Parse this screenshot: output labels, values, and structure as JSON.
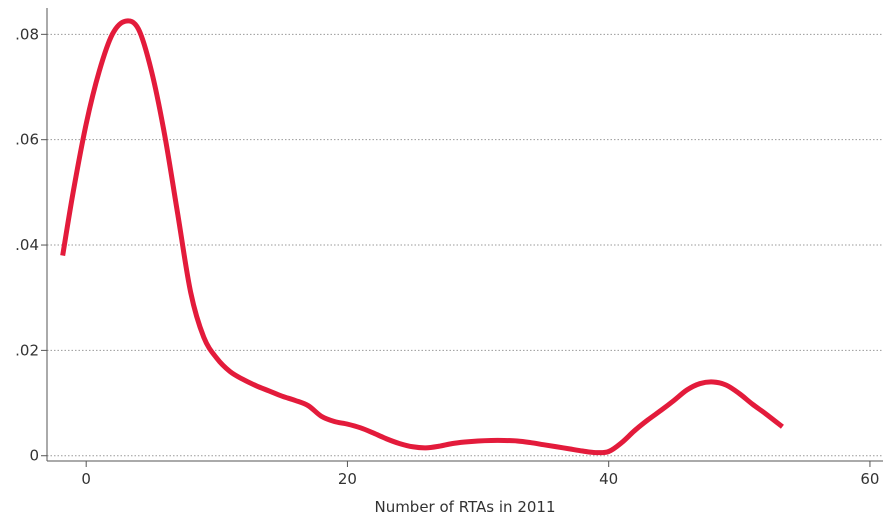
{
  "chart_data": {
    "type": "line",
    "title": "",
    "xlabel": "Number of RTAs in 2011",
    "ylabel": "",
    "xlim": [
      -3,
      61
    ],
    "ylim": [
      -0.001,
      0.085
    ],
    "x_ticks": [
      0,
      20,
      40,
      60
    ],
    "x_tick_labels": [
      "0",
      "20",
      "40",
      "60"
    ],
    "y_ticks": [
      0,
      0.02,
      0.04,
      0.06,
      0.08
    ],
    "y_tick_labels": [
      "0",
      ".02",
      ".04",
      ".06",
      ".08"
    ],
    "grid": "horizontal dotted",
    "legend": "none",
    "colors": {
      "line": "#e31b3b",
      "grid": "#9a9a9a",
      "axis": "#555555",
      "text": "#333333"
    },
    "series": [
      {
        "x": [
          -1.8,
          -1,
          0,
          1,
          2,
          3,
          4,
          5,
          6,
          7,
          8,
          9,
          10,
          11,
          12,
          13,
          14,
          15,
          16,
          17,
          18,
          19,
          20,
          21,
          22,
          23,
          24,
          25,
          26,
          27,
          28,
          29,
          30,
          31,
          32,
          33,
          34,
          35,
          36,
          37,
          38,
          39,
          40,
          41,
          42,
          43,
          44,
          45,
          46,
          47,
          48,
          49,
          50,
          51,
          52,
          53.3
        ],
        "y": [
          0.038,
          0.05,
          0.063,
          0.073,
          0.08,
          0.0825,
          0.081,
          0.073,
          0.061,
          0.046,
          0.031,
          0.0225,
          0.0185,
          0.016,
          0.0145,
          0.0133,
          0.0123,
          0.0113,
          0.0105,
          0.0095,
          0.0075,
          0.0065,
          0.006,
          0.0053,
          0.0043,
          0.0032,
          0.0023,
          0.0017,
          0.0015,
          0.0018,
          0.0023,
          0.0026,
          0.0028,
          0.0029,
          0.0029,
          0.0028,
          0.0025,
          0.0021,
          0.0017,
          0.0013,
          0.0009,
          0.0006,
          0.0008,
          0.0025,
          0.0048,
          0.0068,
          0.0086,
          0.0105,
          0.0125,
          0.0137,
          0.014,
          0.0134,
          0.0118,
          0.0098,
          0.008,
          0.0055
        ]
      }
    ]
  }
}
